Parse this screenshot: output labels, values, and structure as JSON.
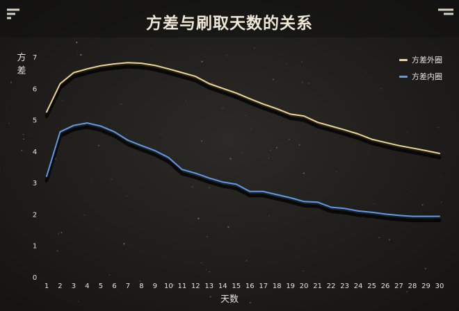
{
  "chart_data": {
    "type": "line",
    "title": "方差与刷取天数的关系",
    "xlabel": "天数",
    "ylabel": "方差",
    "x": [
      1,
      2,
      3,
      4,
      5,
      6,
      7,
      8,
      9,
      10,
      11,
      12,
      13,
      14,
      15,
      16,
      17,
      18,
      19,
      20,
      21,
      22,
      23,
      24,
      25,
      26,
      27,
      28,
      29,
      30
    ],
    "ylim": [
      0,
      7
    ],
    "yticks": [
      0,
      1,
      2,
      3,
      4,
      5,
      6,
      7
    ],
    "grid": false,
    "legend": "top-right",
    "series": [
      {
        "name": "方差外圈",
        "color": "#f0d58e",
        "values": [
          5.25,
          6.15,
          6.5,
          6.62,
          6.72,
          6.78,
          6.82,
          6.8,
          6.73,
          6.62,
          6.5,
          6.38,
          6.15,
          6.0,
          5.85,
          5.67,
          5.5,
          5.35,
          5.18,
          5.12,
          4.92,
          4.8,
          4.68,
          4.55,
          4.38,
          4.28,
          4.18,
          4.1,
          4.02,
          3.93
        ]
      },
      {
        "name": "方差内圈",
        "color": "#5b9cf0",
        "values": [
          3.2,
          4.62,
          4.82,
          4.9,
          4.8,
          4.62,
          4.35,
          4.18,
          4.02,
          3.8,
          3.42,
          3.3,
          3.15,
          3.02,
          2.95,
          2.72,
          2.72,
          2.62,
          2.52,
          2.4,
          2.38,
          2.22,
          2.18,
          2.1,
          2.06,
          2.0,
          1.96,
          1.93,
          1.93,
          1.93
        ]
      }
    ]
  }
}
